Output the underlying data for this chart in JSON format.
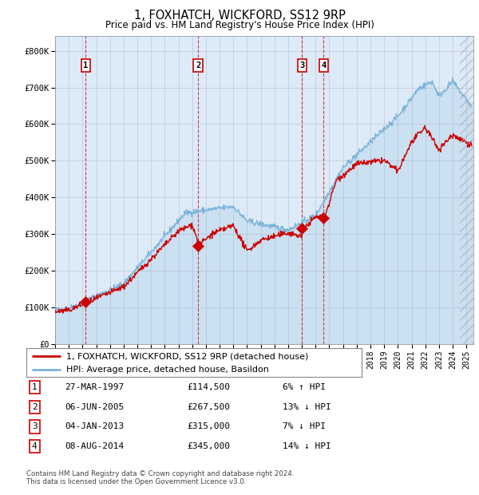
{
  "title": "1, FOXHATCH, WICKFORD, SS12 9RP",
  "subtitle": "Price paid vs. HM Land Registry's House Price Index (HPI)",
  "legend_line1": "1, FOXHATCH, WICKFORD, SS12 9RP (detached house)",
  "legend_line2": "HPI: Average price, detached house, Basildon",
  "footer1": "Contains HM Land Registry data © Crown copyright and database right 2024.",
  "footer2": "This data is licensed under the Open Government Licence v3.0.",
  "hpi_color": "#7ab3d8",
  "price_color": "#cc0000",
  "bg_color": "#ddeaf7",
  "plot_bg": "#ffffff",
  "grid_color": "#c0c8d8",
  "sales": [
    {
      "id": 1,
      "date": 1997.24,
      "price": 114500,
      "label": "27-MAR-1997",
      "pct": "6%",
      "dir": "↑"
    },
    {
      "id": 2,
      "date": 2005.43,
      "price": 267500,
      "label": "06-JUN-2005",
      "pct": "13%",
      "dir": "↓"
    },
    {
      "id": 3,
      "date": 2013.01,
      "price": 315000,
      "label": "04-JAN-2013",
      "pct": "7%",
      "dir": "↓"
    },
    {
      "id": 4,
      "date": 2014.59,
      "price": 345000,
      "label": "08-AUG-2014",
      "pct": "14%",
      "dir": "↓"
    }
  ],
  "xmin": 1995.0,
  "xmax": 2025.5,
  "ymin": 0,
  "ymax": 840000,
  "yticks": [
    0,
    100000,
    200000,
    300000,
    400000,
    500000,
    600000,
    700000,
    800000
  ],
  "ytick_labels": [
    "£0",
    "£100K",
    "£200K",
    "£300K",
    "£400K",
    "£500K",
    "£600K",
    "£700K",
    "£800K"
  ],
  "table_rows": [
    [
      "1",
      "27-MAR-1997",
      "£114,500",
      "6% ↑ HPI"
    ],
    [
      "2",
      "06-JUN-2005",
      "£267,500",
      "13% ↓ HPI"
    ],
    [
      "3",
      "04-JAN-2013",
      "£315,000",
      "7% ↓ HPI"
    ],
    [
      "4",
      "08-AUG-2014",
      "£345,000",
      "14% ↓ HPI"
    ]
  ]
}
